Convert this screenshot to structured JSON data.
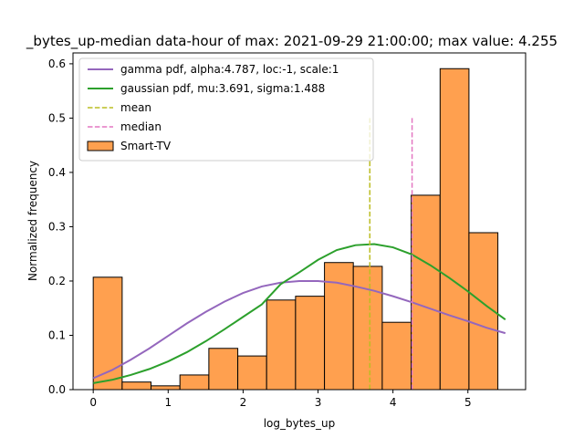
{
  "chart_data": {
    "type": "bar",
    "title": "_bytes_up-median data-hour of max: 2021-09-29 21:00:00; max value: 4.255",
    "xlabel": "log_bytes_up",
    "ylabel": "Normalized frequency",
    "xlim": [
      -0.27,
      5.77
    ],
    "ylim": [
      0,
      0.62
    ],
    "xticks": [
      0,
      1,
      2,
      3,
      4,
      5
    ],
    "yticks": [
      0.0,
      0.1,
      0.2,
      0.3,
      0.4,
      0.5,
      0.6
    ],
    "grid": false,
    "legend_position": "top-left",
    "histogram": {
      "name": "Smart-TV",
      "color": "#ffa04f",
      "edge_color": "#000000",
      "bin_edges": [
        0.0,
        0.386,
        0.771,
        1.157,
        1.543,
        1.929,
        2.314,
        2.7,
        3.086,
        3.471,
        3.857,
        4.243,
        4.629,
        5.014,
        5.4
      ],
      "values": [
        0.207,
        0.014,
        0.007,
        0.027,
        0.076,
        0.062,
        0.165,
        0.172,
        0.234,
        0.227,
        0.124,
        0.358,
        0.591,
        0.289
      ]
    },
    "series": [
      {
        "name": "gamma pdf, alpha:4.787, loc:-1, scale:1",
        "kind": "line",
        "color": "#9467bd",
        "x": [
          0.0,
          0.25,
          0.5,
          0.75,
          1.0,
          1.25,
          1.5,
          1.75,
          2.0,
          2.25,
          2.5,
          2.75,
          3.0,
          3.25,
          3.5,
          3.75,
          4.0,
          4.25,
          4.5,
          4.75,
          5.0,
          5.25,
          5.5
        ],
        "y": [
          0.021,
          0.036,
          0.055,
          0.076,
          0.099,
          0.122,
          0.143,
          0.162,
          0.178,
          0.19,
          0.197,
          0.2,
          0.2,
          0.197,
          0.19,
          0.182,
          0.172,
          0.161,
          0.149,
          0.137,
          0.126,
          0.114,
          0.104
        ]
      },
      {
        "name": "gaussian pdf, mu:3.691, sigma:1.488",
        "kind": "line",
        "color": "#2ca02c",
        "x": [
          0.0,
          0.25,
          0.5,
          0.75,
          1.0,
          1.25,
          1.5,
          1.75,
          2.0,
          2.25,
          2.5,
          2.75,
          3.0,
          3.25,
          3.5,
          3.75,
          4.0,
          4.25,
          4.5,
          4.75,
          5.0,
          5.25,
          5.5
        ],
        "y": [
          0.012,
          0.018,
          0.027,
          0.038,
          0.052,
          0.069,
          0.089,
          0.111,
          0.134,
          0.157,
          0.194,
          0.216,
          0.239,
          0.257,
          0.266,
          0.268,
          0.262,
          0.249,
          0.229,
          0.206,
          0.181,
          0.154,
          0.129
        ]
      },
      {
        "name": "mean",
        "kind": "vline",
        "color": "#bcbd22",
        "x": 3.691,
        "ymax": 0.5
      },
      {
        "name": "median",
        "kind": "vline",
        "color": "#e377c2",
        "x": 4.255,
        "ymax": 0.5
      }
    ]
  }
}
